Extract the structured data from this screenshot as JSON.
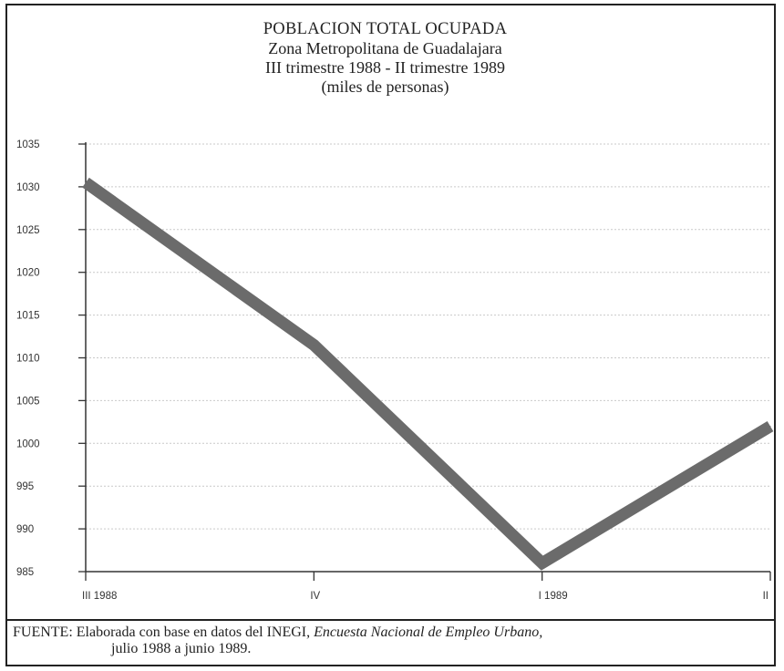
{
  "chart_data": {
    "type": "line",
    "title": "POBLACION TOTAL OCUPADA",
    "subtitle_lines": [
      "Zona Metropolitana de Guadalajara",
      "III trimestre 1988 - II trimestre 1989",
      "(miles de personas)"
    ],
    "categories": [
      "III 1988",
      "IV",
      "I 1989",
      "II"
    ],
    "series": [
      {
        "values": [
          1030.5,
          1011.5,
          986,
          1002
        ]
      }
    ],
    "yticks": [
      985,
      990,
      995,
      1000,
      1005,
      1010,
      1015,
      1020,
      1025,
      1030,
      1035
    ],
    "ylim": [
      985,
      1035
    ],
    "grid": true,
    "line_color": "#6b6b6b"
  },
  "footer": {
    "source_label": "FUENTE:",
    "source_text": "Elaborada con base en datos del INEGI,",
    "source_title": "Encuesta Nacional de Empleo Urbano,",
    "source_period": "julio 1988 a junio 1989."
  }
}
